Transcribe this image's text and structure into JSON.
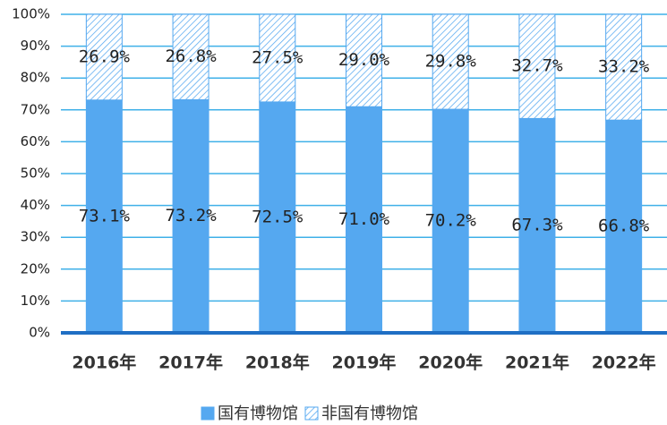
{
  "chart_data": {
    "type": "stacked_bar_100",
    "categories": [
      "2016年",
      "2017年",
      "2018年",
      "2019年",
      "2020年",
      "2021年",
      "2022年"
    ],
    "series": [
      {
        "name": "国有博物馆",
        "color": "#55a8f0",
        "hatch": false,
        "values": [
          73.1,
          73.2,
          72.5,
          71.0,
          70.2,
          67.3,
          66.8
        ],
        "value_labels": [
          "73.1%",
          "73.2%",
          "72.5%",
          "71.0%",
          "70.2%",
          "67.3%",
          "66.8%"
        ]
      },
      {
        "name": "非国有博物馆",
        "color": "#55a8f0",
        "hatch": true,
        "values": [
          26.9,
          26.8,
          27.5,
          29.0,
          29.8,
          32.7,
          33.2
        ],
        "value_labels": [
          "26.9%",
          "26.8%",
          "27.5%",
          "29.0%",
          "29.8%",
          "32.7%",
          "33.2%"
        ]
      }
    ],
    "ylim": [
      0,
      100
    ],
    "yticks": [
      {
        "value": 0,
        "label": "0%"
      },
      {
        "value": 10,
        "label": "10%"
      },
      {
        "value": 20,
        "label": "20%"
      },
      {
        "value": 30,
        "label": "30%"
      },
      {
        "value": 40,
        "label": "40%"
      },
      {
        "value": 50,
        "label": "50%"
      },
      {
        "value": 60,
        "label": "60%"
      },
      {
        "value": 70,
        "label": "70%"
      },
      {
        "value": 80,
        "label": "80%"
      },
      {
        "value": 90,
        "label": "90%"
      },
      {
        "value": 100,
        "label": "100%"
      }
    ],
    "grid": true,
    "legend": "bottom"
  }
}
